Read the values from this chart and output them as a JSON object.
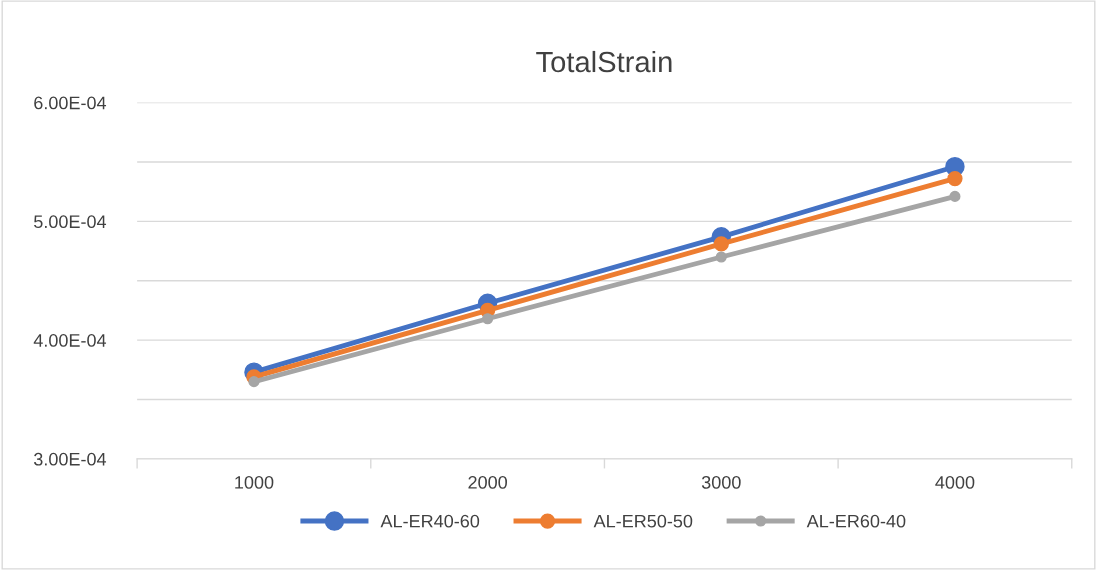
{
  "chart_data": {
    "type": "line",
    "title": "TotalStrain",
    "categories": [
      "1000",
      "2000",
      "3000",
      "4000"
    ],
    "series": [
      {
        "name": "AL-ER40-60",
        "color": "#4472c4",
        "values": [
          0.000373,
          0.000431,
          0.000487,
          0.000546
        ]
      },
      {
        "name": "AL-ER50-50",
        "color": "#ed7d31",
        "values": [
          0.000369,
          0.000425,
          0.000481,
          0.000536
        ]
      },
      {
        "name": "AL-ER60-40",
        "color": "#a5a5a5",
        "values": [
          0.000365,
          0.000418,
          0.00047,
          0.000521
        ]
      }
    ],
    "ylim": [
      0.0003,
      0.0006
    ],
    "yticks": [
      {
        "value": 0.0003,
        "label": "3.00E-04"
      },
      {
        "value": 0.00035,
        "label": null
      },
      {
        "value": 0.0004,
        "label": "4.00E-04"
      },
      {
        "value": 0.00045,
        "label": null
      },
      {
        "value": 0.0005,
        "label": "5.00E-04"
      },
      {
        "value": 0.00055,
        "label": null
      },
      {
        "value": 0.0006,
        "label": "6.00E-04"
      }
    ],
    "grid": "y",
    "legend": "bottom",
    "marker": "circle",
    "line_style": "solid"
  }
}
